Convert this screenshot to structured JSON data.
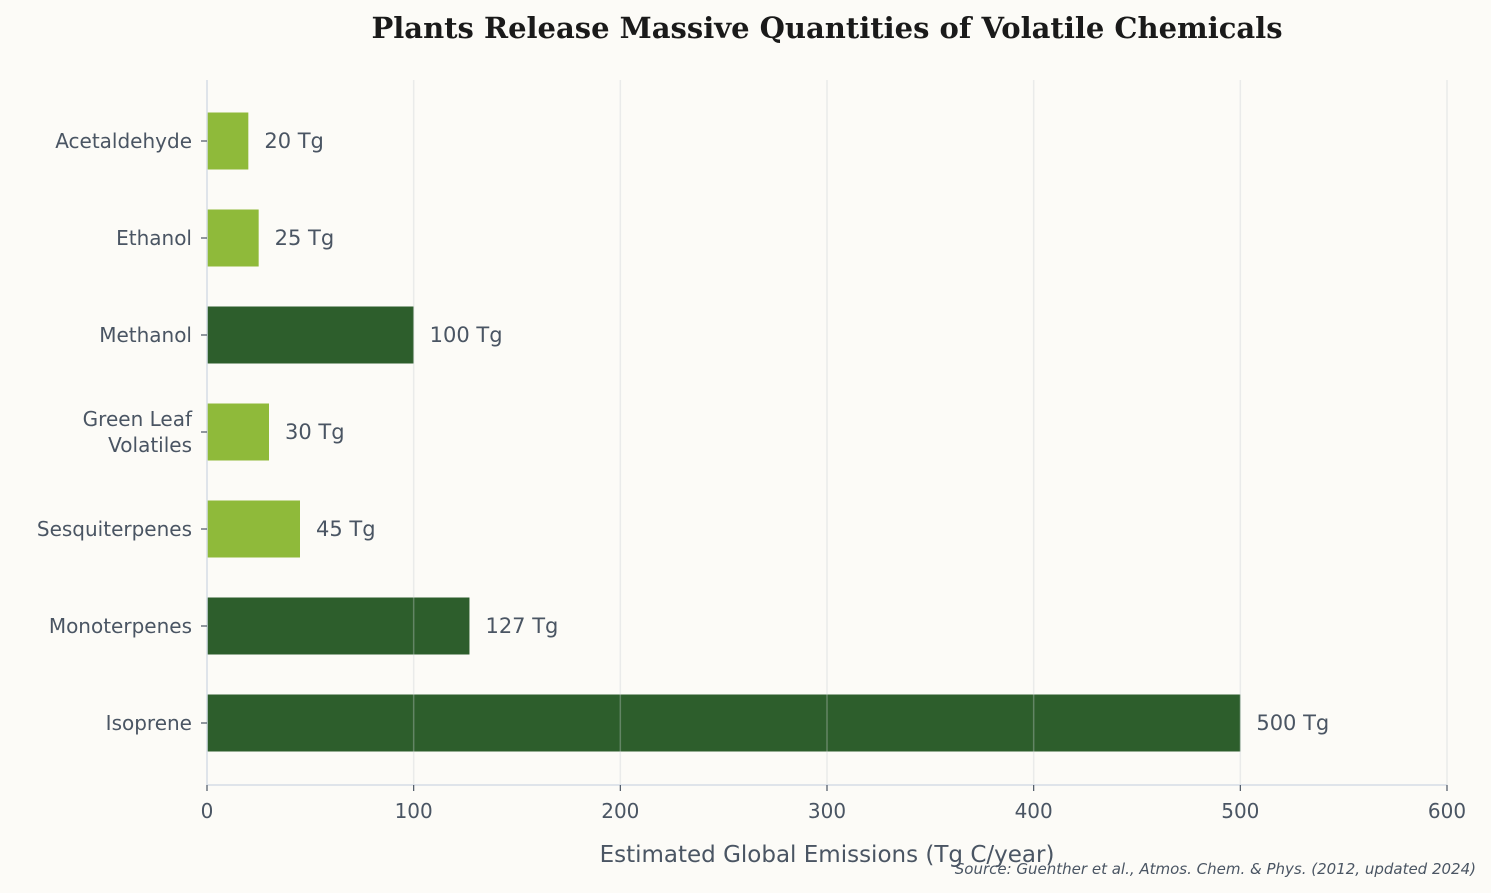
{
  "chart_data": {
    "type": "bar",
    "orientation": "horizontal",
    "title": "Plants Release Massive Quantities of Volatile Chemicals",
    "xlabel": "Estimated Global Emissions (Tg C/year)",
    "ylabel": "",
    "xlim": [
      0,
      600
    ],
    "xticks": [
      0,
      100,
      200,
      300,
      400,
      500,
      600
    ],
    "grid": "vertical",
    "categories": [
      "Acetaldehyde",
      "Ethanol",
      "Methanol",
      "Green Leaf Volatiles",
      "Sesquiterpenes",
      "Monoterpenes",
      "Isoprene"
    ],
    "category_lines": [
      [
        "Acetaldehyde"
      ],
      [
        "Ethanol"
      ],
      [
        "Methanol"
      ],
      [
        "Green Leaf",
        "Volatiles"
      ],
      [
        "Sesquiterpenes"
      ],
      [
        "Monoterpenes"
      ],
      [
        "Isoprene"
      ]
    ],
    "values": [
      20,
      25,
      100,
      30,
      45,
      127,
      500
    ],
    "value_labels": [
      "20 Tg",
      "25 Tg",
      "100 Tg",
      "30 Tg",
      "45 Tg",
      "127 Tg",
      "500 Tg"
    ],
    "bar_colors": [
      "#8fba3a",
      "#8fba3a",
      "#2d5e2c",
      "#8fba3a",
      "#8fba3a",
      "#2d5e2c",
      "#2d5e2c"
    ],
    "source": "Source: Guenther et al., Atmos. Chem. & Phys. (2012, updated 2024)"
  }
}
